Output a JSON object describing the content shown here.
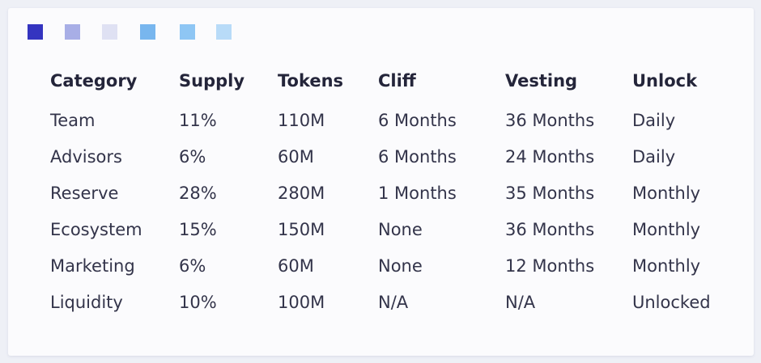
{
  "legend_swatches": [
    {
      "name": "swatch-1",
      "color": "#3434c0"
    },
    {
      "name": "swatch-2",
      "color": "#a8aee6"
    },
    {
      "name": "swatch-3",
      "color": "#dfe1f3"
    },
    {
      "name": "swatch-4",
      "color": "#78b6ee"
    },
    {
      "name": "swatch-5",
      "color": "#8ec6f4"
    },
    {
      "name": "swatch-6",
      "color": "#b8dbf8"
    }
  ],
  "table": {
    "headers": [
      "Category",
      "Supply",
      "Tokens",
      "Cliff",
      "Vesting",
      "Unlock"
    ],
    "rows": [
      [
        "Team",
        "11%",
        "110M",
        "6 Months",
        "36 Months",
        "Daily"
      ],
      [
        "Advisors",
        "6%",
        "60M",
        "6 Months",
        "24 Months",
        "Daily"
      ],
      [
        "Reserve",
        "28%",
        "280M",
        "1 Months",
        "35 Months",
        "Monthly"
      ],
      [
        "Ecosystem",
        "15%",
        "150M",
        "None",
        "36 Months",
        "Monthly"
      ],
      [
        "Marketing",
        "6%",
        "60M",
        "None",
        "12 Months",
        "Monthly"
      ],
      [
        "Liquidity",
        "10%",
        "100M",
        "N/A",
        "N/A",
        "Unlocked"
      ]
    ]
  }
}
